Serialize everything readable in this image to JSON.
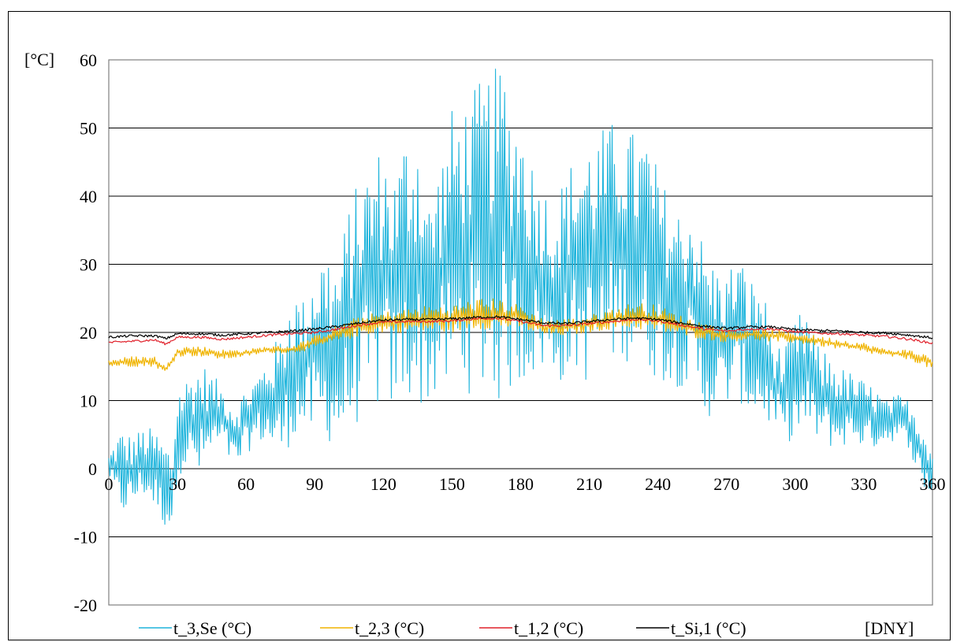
{
  "chart_data": {
    "type": "line",
    "title": "",
    "ylabel": "[°C]",
    "xlabel": "[DNY]",
    "xlim": [
      0,
      360
    ],
    "ylim": [
      -20,
      60
    ],
    "x_ticks": [
      0,
      30,
      60,
      90,
      120,
      150,
      180,
      210,
      240,
      270,
      300,
      330,
      360
    ],
    "y_ticks": [
      -20,
      -10,
      0,
      10,
      20,
      30,
      40,
      50,
      60
    ],
    "y_tick_labels": [
      "-20",
      "-10",
      "0",
      "10",
      "20",
      "30",
      "40",
      "50",
      "60"
    ],
    "x_tick_labels": [
      "0",
      "30",
      "60",
      "90",
      "120",
      "150",
      "180",
      "210",
      "240",
      "270",
      "300",
      "330",
      "360"
    ],
    "grid": "horizontal",
    "legend_position": "bottom",
    "series": [
      {
        "name": "t_3,Se (°C)",
        "color": "#1eb4dc",
        "style": "daily oscillation between envelope curves",
        "x": [
          0,
          5,
          10,
          15,
          20,
          25,
          28,
          30,
          35,
          40,
          45,
          50,
          55,
          60,
          65,
          70,
          75,
          80,
          85,
          90,
          95,
          100,
          105,
          110,
          115,
          120,
          125,
          130,
          135,
          140,
          145,
          150,
          155,
          160,
          165,
          170,
          173,
          175,
          180,
          185,
          190,
          195,
          200,
          205,
          210,
          215,
          220,
          225,
          230,
          235,
          240,
          245,
          250,
          255,
          260,
          265,
          270,
          275,
          280,
          285,
          290,
          295,
          300,
          305,
          310,
          315,
          320,
          325,
          330,
          335,
          340,
          345,
          350,
          355,
          360
        ],
        "upper": [
          2,
          6,
          5,
          6,
          6,
          4,
          3,
          12,
          14,
          16,
          14,
          12,
          10,
          12,
          14,
          17,
          20,
          27,
          25,
          31,
          33,
          30,
          39,
          43,
          46,
          48,
          44,
          50,
          51,
          40,
          46,
          53,
          54,
          56,
          58,
          59,
          60,
          55,
          53,
          46,
          42,
          40,
          44,
          47,
          49,
          50,
          51,
          52,
          49,
          50,
          44,
          40,
          38,
          40,
          33,
          30,
          29,
          32,
          28,
          28,
          20,
          17,
          22,
          24,
          18,
          17,
          15,
          14,
          13,
          12,
          10,
          11,
          10,
          8,
          3
        ],
        "lower": [
          -1,
          -7,
          -6,
          -4,
          -6,
          -9,
          -9,
          -1,
          0,
          -2,
          2,
          3,
          -1,
          2,
          4,
          3,
          1,
          4,
          5,
          4,
          4,
          3,
          5,
          7,
          8,
          9,
          8,
          10,
          9,
          9,
          11,
          10,
          12,
          10,
          11,
          9,
          10,
          11,
          12,
          13,
          14,
          12,
          13,
          14,
          12,
          13,
          15,
          16,
          15,
          14,
          13,
          12,
          12,
          11,
          7,
          8,
          9,
          10,
          8,
          7,
          6,
          4,
          4,
          5,
          4,
          3,
          3,
          4,
          3,
          3,
          4,
          4,
          3,
          -3,
          -4
        ]
      },
      {
        "name": "t_2,3 (°C)",
        "color": "#f0b400",
        "style": "noisy line with small daily amplitude",
        "x": [
          0,
          10,
          20,
          25,
          30,
          40,
          50,
          60,
          70,
          80,
          90,
          100,
          110,
          120,
          130,
          140,
          150,
          160,
          170,
          180,
          190,
          200,
          210,
          220,
          230,
          240,
          250,
          260,
          270,
          280,
          290,
          300,
          310,
          320,
          330,
          340,
          350,
          360
        ],
        "upper": [
          16,
          16.5,
          16.5,
          15,
          18,
          18,
          17.5,
          17.5,
          18,
          18,
          19.5,
          21,
          22.5,
          23,
          23.5,
          24,
          24,
          25,
          25,
          24,
          22,
          22,
          22.5,
          23.5,
          24.5,
          24,
          22.5,
          21.5,
          20.5,
          20.5,
          20.5,
          20,
          19.5,
          19,
          18.5,
          17.5,
          17.5,
          16.5
        ],
        "lower": [
          15,
          15,
          15,
          14,
          16.5,
          16.5,
          16,
          16.5,
          17,
          17,
          17.5,
          18.5,
          19.5,
          20,
          20,
          20,
          20,
          20.5,
          20.5,
          20.5,
          19.5,
          19.5,
          20,
          20.5,
          20.5,
          20,
          19.5,
          19,
          18.5,
          19,
          18.5,
          18.5,
          18,
          17.5,
          17,
          16.5,
          16,
          14.5
        ]
      },
      {
        "name": "t_1,2 (°C)",
        "color": "#e0202a",
        "style": "smooth line",
        "x": [
          0,
          10,
          20,
          25,
          30,
          40,
          50,
          60,
          70,
          80,
          90,
          100,
          110,
          120,
          130,
          140,
          150,
          160,
          170,
          180,
          190,
          200,
          210,
          220,
          230,
          240,
          250,
          260,
          270,
          280,
          290,
          300,
          310,
          320,
          330,
          340,
          350,
          360
        ],
        "values": [
          18.5,
          18.7,
          18.9,
          18.3,
          19.3,
          19.3,
          19.0,
          19.3,
          19.6,
          19.8,
          20.0,
          20.5,
          21.1,
          21.5,
          21.6,
          21.6,
          21.7,
          22.0,
          22.1,
          21.6,
          21.0,
          21.0,
          21.3,
          21.6,
          21.9,
          21.7,
          21.1,
          20.5,
          20.2,
          20.5,
          20.5,
          20.1,
          19.9,
          19.8,
          19.6,
          19.4,
          19.0,
          18.4
        ]
      },
      {
        "name": "t_Si,1 (°C)",
        "color": "#000000",
        "style": "smooth line",
        "x": [
          0,
          10,
          20,
          25,
          30,
          40,
          50,
          60,
          70,
          80,
          90,
          100,
          110,
          120,
          130,
          140,
          150,
          160,
          170,
          180,
          190,
          200,
          210,
          220,
          230,
          240,
          250,
          260,
          270,
          280,
          290,
          300,
          310,
          320,
          330,
          340,
          350,
          360
        ],
        "values": [
          19.3,
          19.5,
          19.5,
          19.1,
          19.8,
          19.8,
          19.6,
          19.8,
          20.0,
          20.2,
          20.5,
          20.9,
          21.4,
          21.8,
          21.9,
          21.9,
          22.0,
          22.2,
          22.3,
          21.9,
          21.4,
          21.3,
          21.6,
          21.9,
          22.1,
          21.9,
          21.4,
          20.9,
          20.6,
          20.8,
          20.8,
          20.4,
          20.3,
          20.2,
          20.0,
          19.9,
          19.6,
          19.2
        ]
      }
    ]
  }
}
